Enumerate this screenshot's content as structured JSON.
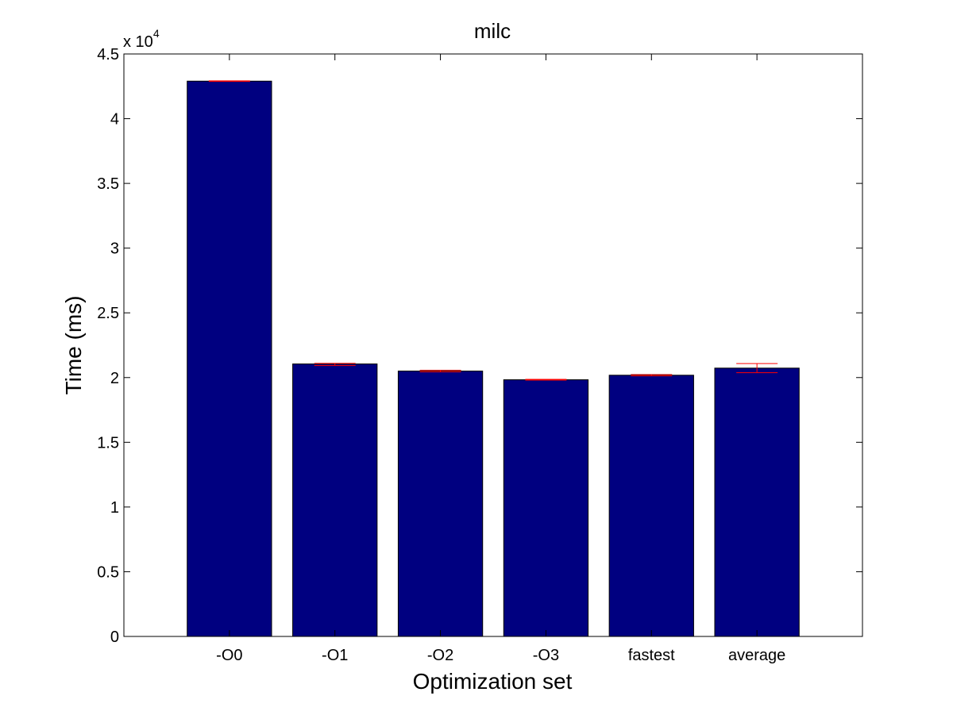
{
  "chart_data": {
    "type": "bar",
    "title": "milc",
    "xlabel": "Optimization set",
    "ylabel": "Time (ms)",
    "y_multiplier_label": "x 10",
    "y_multiplier_exponent": "4",
    "categories": [
      "-O0",
      "-O1",
      "-O2",
      "-O3",
      "fastest",
      "average"
    ],
    "values": [
      42900,
      21050,
      20500,
      19830,
      20180,
      20730
    ],
    "error_low": [
      42880,
      20930,
      20440,
      19800,
      20130,
      20380
    ],
    "error_high": [
      42920,
      21100,
      20560,
      19860,
      20230,
      21080
    ],
    "ylim": [
      0,
      45000
    ],
    "yticks": [
      0,
      5000,
      10000,
      15000,
      20000,
      25000,
      30000,
      35000,
      40000,
      45000
    ],
    "ytick_labels": [
      "0",
      "0.5",
      "1",
      "1.5",
      "2",
      "2.5",
      "3",
      "3.5",
      "4",
      "4.5"
    ],
    "bar_color": "#000080",
    "error_color": "#ff0000",
    "grid": false
  }
}
